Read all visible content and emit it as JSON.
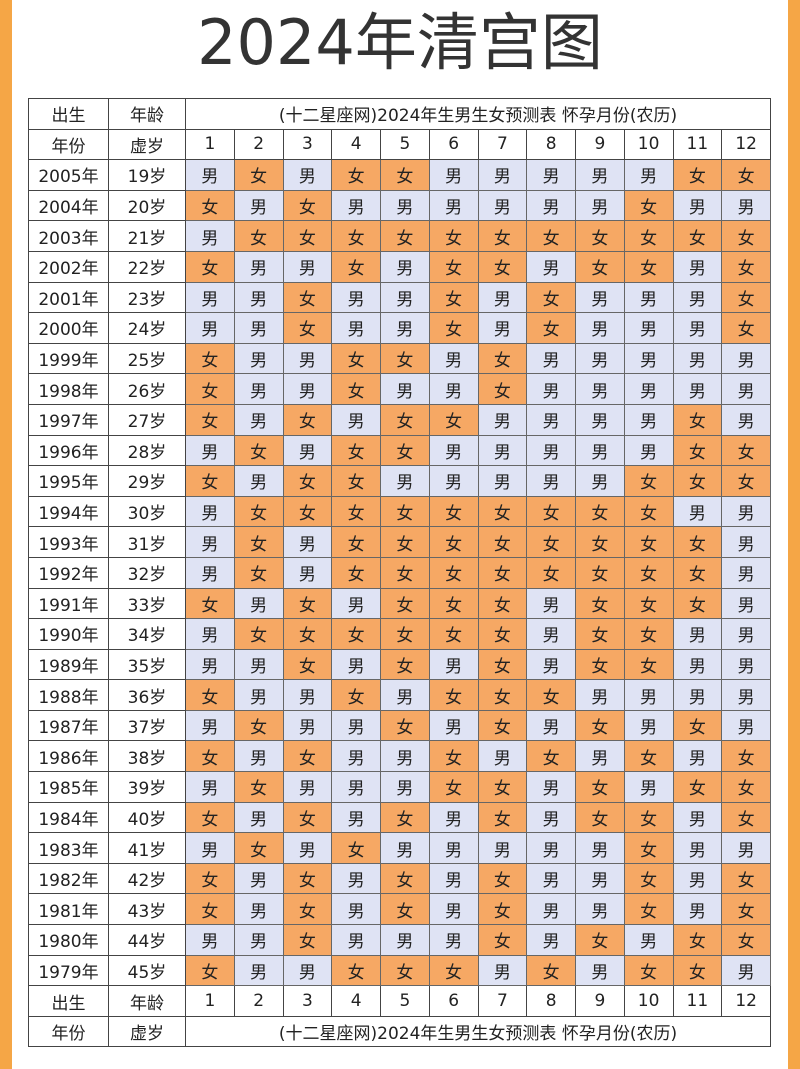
{
  "header": {
    "title": "2024年清宫图"
  },
  "cell_colors": {
    "女": "#f6a864",
    "男": "#dfe3f4"
  },
  "table": {
    "head": [
      [
        "出生",
        "年龄",
        "(十二星座网)2024年生男生女预测表 怀孕月份(农历)"
      ],
      [
        "年份",
        "虚岁",
        1,
        2,
        3,
        4,
        5,
        6,
        7,
        8,
        9,
        10,
        11,
        12
      ]
    ],
    "rows": [
      [
        "2005年",
        "19岁",
        "男",
        "女",
        "男",
        "女",
        "女",
        "男",
        "男",
        "男",
        "男",
        "男",
        "女",
        "女"
      ],
      [
        "2004年",
        "20岁",
        "女",
        "男",
        "女",
        "男",
        "男",
        "男",
        "男",
        "男",
        "男",
        "女",
        "男",
        "男"
      ],
      [
        "2003年",
        "21岁",
        "男",
        "女",
        "女",
        "女",
        "女",
        "女",
        "女",
        "女",
        "女",
        "女",
        "女",
        "女"
      ],
      [
        "2002年",
        "22岁",
        "女",
        "男",
        "男",
        "女",
        "男",
        "女",
        "女",
        "男",
        "女",
        "女",
        "男",
        "女"
      ],
      [
        "2001年",
        "23岁",
        "男",
        "男",
        "女",
        "男",
        "男",
        "女",
        "男",
        "女",
        "男",
        "男",
        "男",
        "女"
      ],
      [
        "2000年",
        "24岁",
        "男",
        "男",
        "女",
        "男",
        "男",
        "女",
        "男",
        "女",
        "男",
        "男",
        "男",
        "女"
      ],
      [
        "1999年",
        "25岁",
        "女",
        "男",
        "男",
        "女",
        "女",
        "男",
        "女",
        "男",
        "男",
        "男",
        "男",
        "男"
      ],
      [
        "1998年",
        "26岁",
        "女",
        "男",
        "男",
        "女",
        "男",
        "男",
        "女",
        "男",
        "男",
        "男",
        "男",
        "男"
      ],
      [
        "1997年",
        "27岁",
        "女",
        "男",
        "女",
        "男",
        "女",
        "女",
        "男",
        "男",
        "男",
        "男",
        "女",
        "男"
      ],
      [
        "1996年",
        "28岁",
        "男",
        "女",
        "男",
        "女",
        "女",
        "男",
        "男",
        "男",
        "男",
        "男",
        "女",
        "女"
      ],
      [
        "1995年",
        "29岁",
        "女",
        "男",
        "女",
        "女",
        "男",
        "男",
        "男",
        "男",
        "男",
        "女",
        "女",
        "女"
      ],
      [
        "1994年",
        "30岁",
        "男",
        "女",
        "女",
        "女",
        "女",
        "女",
        "女",
        "女",
        "女",
        "女",
        "男",
        "男"
      ],
      [
        "1993年",
        "31岁",
        "男",
        "女",
        "男",
        "女",
        "女",
        "女",
        "女",
        "女",
        "女",
        "女",
        "女",
        "男"
      ],
      [
        "1992年",
        "32岁",
        "男",
        "女",
        "男",
        "女",
        "女",
        "女",
        "女",
        "女",
        "女",
        "女",
        "女",
        "男"
      ],
      [
        "1991年",
        "33岁",
        "女",
        "男",
        "女",
        "男",
        "女",
        "女",
        "女",
        "男",
        "女",
        "女",
        "女",
        "男"
      ],
      [
        "1990年",
        "34岁",
        "男",
        "女",
        "女",
        "女",
        "女",
        "女",
        "女",
        "男",
        "女",
        "女",
        "男",
        "男"
      ],
      [
        "1989年",
        "35岁",
        "男",
        "男",
        "女",
        "男",
        "女",
        "男",
        "女",
        "男",
        "女",
        "女",
        "男",
        "男"
      ],
      [
        "1988年",
        "36岁",
        "女",
        "男",
        "男",
        "女",
        "男",
        "女",
        "女",
        "女",
        "男",
        "男",
        "男",
        "男"
      ],
      [
        "1987年",
        "37岁",
        "男",
        "女",
        "男",
        "男",
        "女",
        "男",
        "女",
        "男",
        "女",
        "男",
        "女",
        "男"
      ],
      [
        "1986年",
        "38岁",
        "女",
        "男",
        "女",
        "男",
        "男",
        "女",
        "男",
        "女",
        "男",
        "女",
        "男",
        "女"
      ],
      [
        "1985年",
        "39岁",
        "男",
        "女",
        "男",
        "男",
        "男",
        "女",
        "女",
        "男",
        "女",
        "男",
        "女",
        "女"
      ],
      [
        "1984年",
        "40岁",
        "女",
        "男",
        "女",
        "男",
        "女",
        "男",
        "女",
        "男",
        "女",
        "女",
        "男",
        "女"
      ],
      [
        "1983年",
        "41岁",
        "男",
        "女",
        "男",
        "女",
        "男",
        "男",
        "男",
        "男",
        "男",
        "女",
        "男",
        "男"
      ],
      [
        "1982年",
        "42岁",
        "女",
        "男",
        "女",
        "男",
        "女",
        "男",
        "女",
        "男",
        "男",
        "女",
        "男",
        "女"
      ],
      [
        "1981年",
        "43岁",
        "女",
        "男",
        "女",
        "男",
        "女",
        "男",
        "女",
        "男",
        "男",
        "女",
        "男",
        "女"
      ],
      [
        "1980年",
        "44岁",
        "男",
        "男",
        "女",
        "男",
        "男",
        "男",
        "女",
        "男",
        "女",
        "男",
        "女",
        "女"
      ],
      [
        "1979年",
        "45岁",
        "女",
        "男",
        "男",
        "女",
        "女",
        "女",
        "男",
        "女",
        "男",
        "女",
        "女",
        "男"
      ]
    ],
    "foot": [
      [
        "出生",
        "年龄",
        1,
        2,
        3,
        4,
        5,
        6,
        7,
        8,
        9,
        10,
        11,
        12
      ],
      [
        "年份",
        "虚岁",
        "(十二星座网)2024年生男生女预测表 怀孕月份(农历)"
      ]
    ]
  }
}
